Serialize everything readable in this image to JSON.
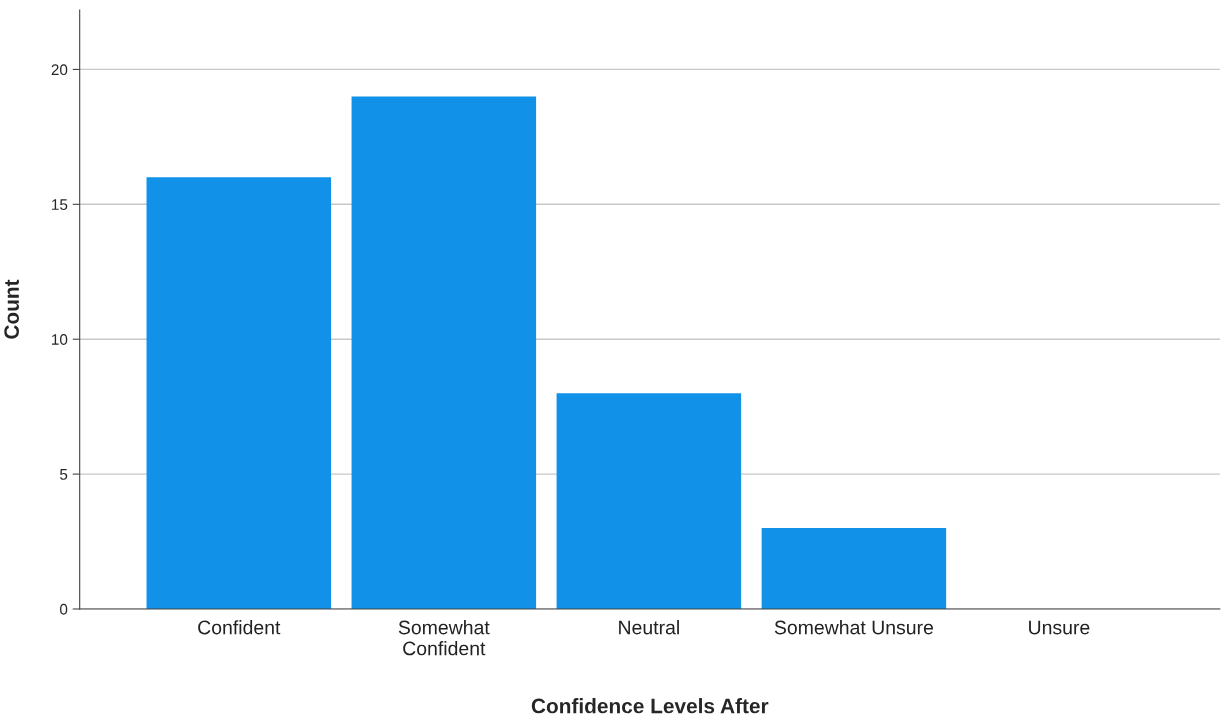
{
  "chart_data": {
    "type": "bar",
    "xlabel": "Confidence Levels After",
    "ylabel": "Count",
    "categories": [
      "Confident",
      "Somewhat\nConfident",
      "Neutral",
      "Somewhat Unsure",
      "Unsure"
    ],
    "values": [
      16,
      19,
      8,
      3,
      0
    ],
    "color": "#1192e8",
    "ylim": [
      0,
      22.2
    ],
    "yticks": [
      0,
      5,
      10,
      15,
      20
    ],
    "grid": "y",
    "legend": false
  }
}
